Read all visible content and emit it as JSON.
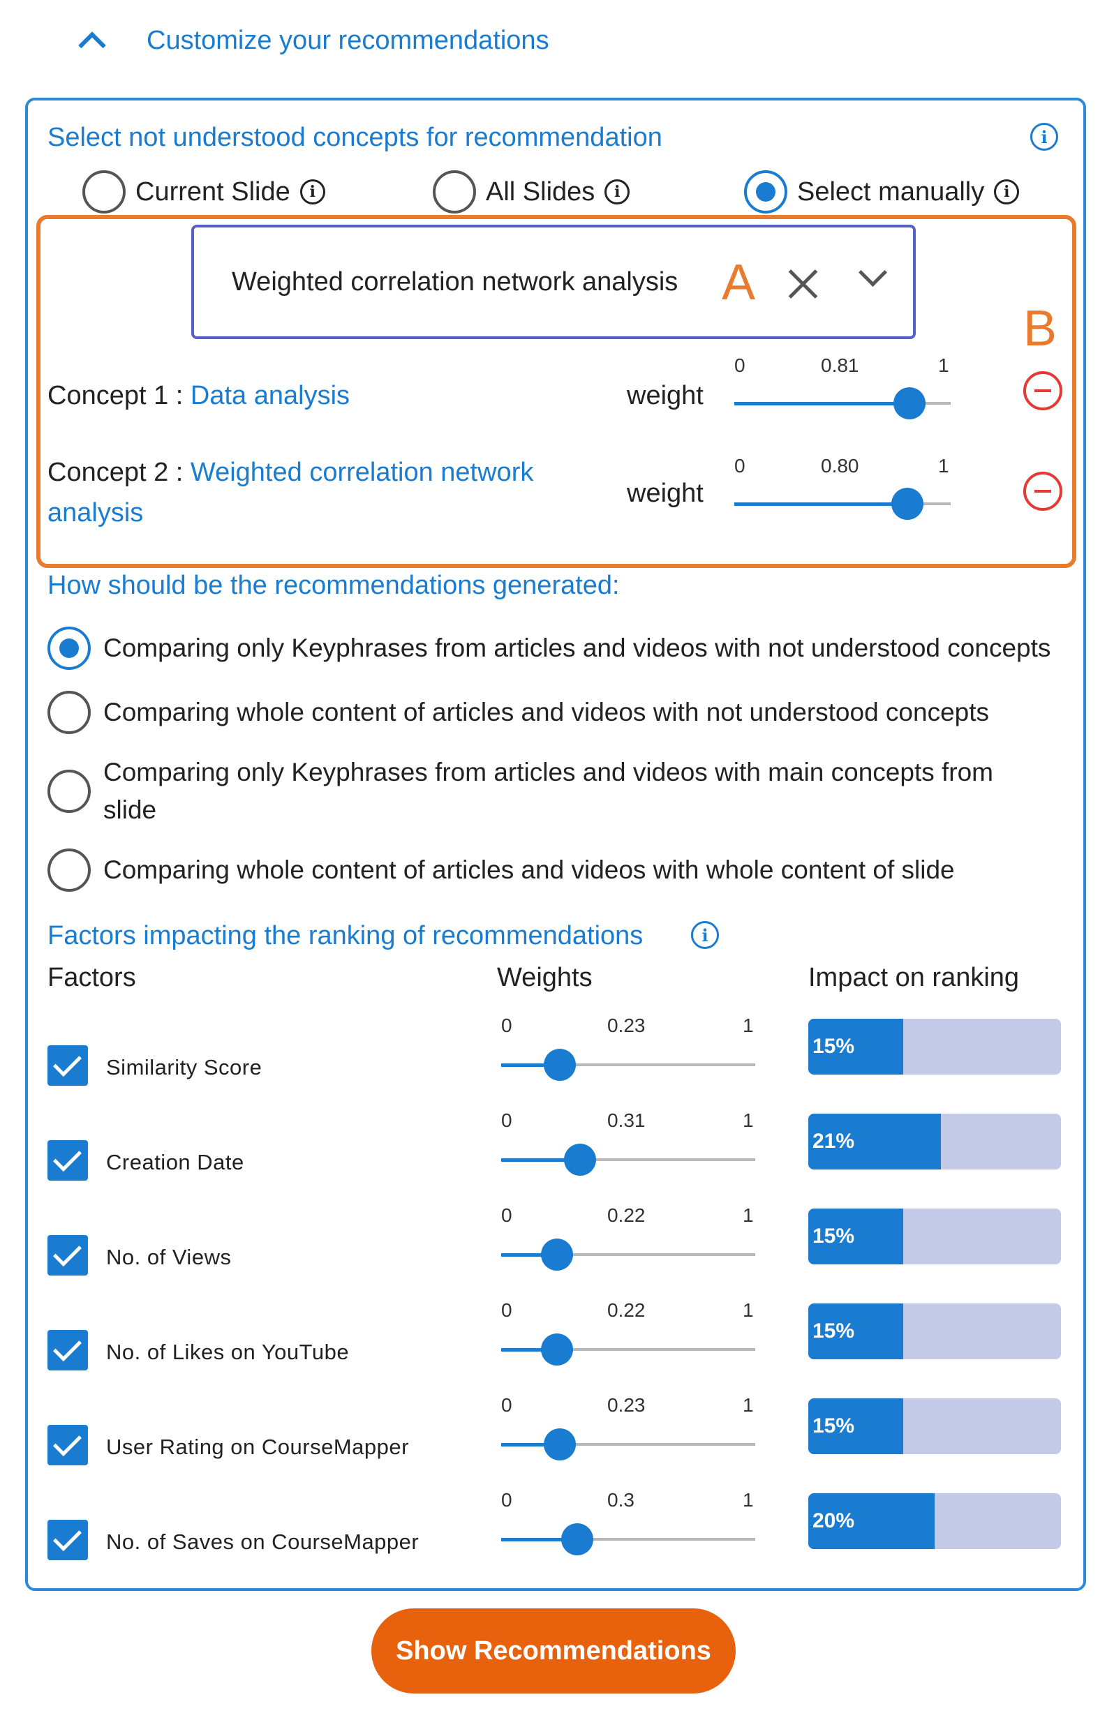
{
  "header": {
    "title": "Customize your recommendations"
  },
  "concepts_section": {
    "title": "Select not understood concepts for recommendation",
    "modes": [
      {
        "label": "Current Slide",
        "checked": false
      },
      {
        "label": "All Slides",
        "checked": false
      },
      {
        "label": "Select manually",
        "checked": true
      }
    ],
    "select_value": "Weighted correlation network analysis",
    "annotations": {
      "a": "A",
      "b": "B"
    },
    "concepts": [
      {
        "prefix": "Concept 1 : ",
        "name": "Data analysis",
        "weight_label": "weight",
        "min": "0",
        "max": "1",
        "value": 0.81,
        "value_label": "0.81"
      },
      {
        "prefix": "Concept 2 : ",
        "name": "Weighted correlation network analysis",
        "weight_label": "weight",
        "min": "0",
        "max": "1",
        "value": 0.8,
        "value_label": "0.80"
      }
    ]
  },
  "generation_section": {
    "title": "How should be the recommendations generated:",
    "options": [
      {
        "label": "Comparing only Keyphrases from articles and videos with not understood concepts",
        "checked": true
      },
      {
        "label": "Comparing whole content of articles and videos with not understood concepts",
        "checked": false
      },
      {
        "label": "Comparing only Keyphrases from articles and videos with main concepts from slide",
        "checked": false
      },
      {
        "label": "Comparing whole content of articles and videos with whole content of slide",
        "checked": false
      }
    ]
  },
  "factors_section": {
    "title": "Factors impacting the ranking of recommendations",
    "col_factors": "Factors",
    "col_weights": "Weights",
    "col_impact": "Impact on ranking",
    "factors": [
      {
        "label": "Similarity Score",
        "checked": true,
        "min": "0",
        "max": "1",
        "weight": 0.23,
        "weight_label": "0.23",
        "impact": 0.15,
        "impact_label": "15%"
      },
      {
        "label": "Creation Date",
        "checked": true,
        "min": "0",
        "max": "1",
        "weight": 0.31,
        "weight_label": "0.31",
        "impact": 0.21,
        "impact_label": "21%"
      },
      {
        "label": "No. of Views",
        "checked": true,
        "min": "0",
        "max": "1",
        "weight": 0.22,
        "weight_label": "0.22",
        "impact": 0.15,
        "impact_label": "15%"
      },
      {
        "label": "No. of Likes on YouTube",
        "checked": true,
        "min": "0",
        "max": "1",
        "weight": 0.22,
        "weight_label": "0.22",
        "impact": 0.15,
        "impact_label": "15%"
      },
      {
        "label": "User Rating on CourseMapper",
        "checked": true,
        "min": "0",
        "max": "1",
        "weight": 0.23,
        "weight_label": "0.23",
        "impact": 0.15,
        "impact_label": "15%"
      },
      {
        "label": "No. of Saves on CourseMapper",
        "checked": true,
        "min": "0",
        "max": "1",
        "weight": 0.3,
        "weight_label": "0.3",
        "impact": 0.2,
        "impact_label": "20%"
      }
    ]
  },
  "footer": {
    "button_label": "Show Recommendations"
  },
  "colors": {
    "accent": "#1a7cd0",
    "highlight": "#e87b2e",
    "button": "#e8620e",
    "remove": "#e53935",
    "impact_bg": "#c5c9e8"
  }
}
